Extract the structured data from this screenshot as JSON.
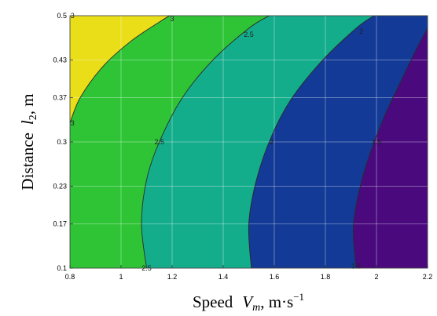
{
  "chart_data": {
    "type": "contour",
    "xlabel": {
      "main": "Speed",
      "var": "V",
      "sub": "m",
      "unit_main": ", m·s",
      "unit_sup": "−1"
    },
    "ylabel": {
      "main": "Distance",
      "var": "l",
      "sub": "2",
      "unit": ", m"
    },
    "xlim": [
      0.8,
      2.2
    ],
    "ylim": [
      0.1,
      0.5
    ],
    "x_ticks": [
      0.8,
      1,
      1.2,
      1.4,
      1.6,
      1.8,
      2,
      2.2
    ],
    "x_tick_labels": [
      "0.8",
      "1",
      "1.2",
      "1.4",
      "1.6",
      "1.8",
      "2",
      "2.2"
    ],
    "y_ticks": [
      0.1,
      0.17,
      0.23,
      0.3,
      0.37,
      0.43,
      0.5
    ],
    "y_tick_labels": [
      "0.1",
      "0.17",
      "0.23",
      "0.3",
      "0.37",
      "0.43",
      "0.5"
    ],
    "grid": true,
    "contour_levels": [
      {
        "level": 1.5,
        "label": "1.5",
        "points": [
          [
            1.92,
            0.1
          ],
          [
            1.91,
            0.17
          ],
          [
            1.95,
            0.25
          ],
          [
            2.02,
            0.33
          ],
          [
            2.1,
            0.4
          ],
          [
            2.16,
            0.45
          ],
          [
            2.2,
            0.48
          ]
        ]
      },
      {
        "level": 2,
        "label": "2",
        "points": [
          [
            1.51,
            0.1
          ],
          [
            1.5,
            0.17
          ],
          [
            1.53,
            0.24
          ],
          [
            1.59,
            0.31
          ],
          [
            1.67,
            0.37
          ],
          [
            1.79,
            0.43
          ],
          [
            1.92,
            0.48
          ],
          [
            1.99,
            0.5
          ]
        ]
      },
      {
        "level": 2.5,
        "label": "2.5",
        "points": [
          [
            1.1,
            0.1
          ],
          [
            1.08,
            0.17
          ],
          [
            1.1,
            0.24
          ],
          [
            1.15,
            0.3
          ],
          [
            1.24,
            0.37
          ],
          [
            1.36,
            0.43
          ],
          [
            1.5,
            0.48
          ],
          [
            1.58,
            0.5
          ]
        ]
      },
      {
        "level": 3,
        "label": "3",
        "points": [
          [
            0.8,
            0.33
          ],
          [
            0.84,
            0.37
          ],
          [
            0.93,
            0.42
          ],
          [
            1.04,
            0.46
          ],
          [
            1.15,
            0.49
          ],
          [
            1.19,
            0.5
          ]
        ]
      }
    ],
    "region_colors": [
      {
        "range": "<1.5",
        "color": "#4a0a7e"
      },
      {
        "range": "1.5-2",
        "color": "#123a96"
      },
      {
        "range": "2-2.5",
        "color": "#14ad8b"
      },
      {
        "range": "2.5-3",
        "color": "#2ec436"
      },
      {
        "range": ">3",
        "color": "#eade18"
      }
    ],
    "contour_label_positions": [
      {
        "label": "3",
        "x": 1.2,
        "y": 0.495
      },
      {
        "label": "2.5",
        "x": 1.5,
        "y": 0.47
      },
      {
        "label": "2",
        "x": 1.94,
        "y": 0.475
      },
      {
        "label": "2.5",
        "x": 1.15,
        "y": 0.3
      },
      {
        "label": "2",
        "x": 1.59,
        "y": 0.3
      },
      {
        "label": "1.5",
        "x": 2.0,
        "y": 0.3
      },
      {
        "label": "2.5",
        "x": 1.1,
        "y": 0.1
      },
      {
        "label": "1.5",
        "x": 1.92,
        "y": 0.103
      },
      {
        "label": "3",
        "x": 0.81,
        "y": 0.5
      },
      {
        "label": "3",
        "x": 0.81,
        "y": 0.33
      }
    ]
  }
}
